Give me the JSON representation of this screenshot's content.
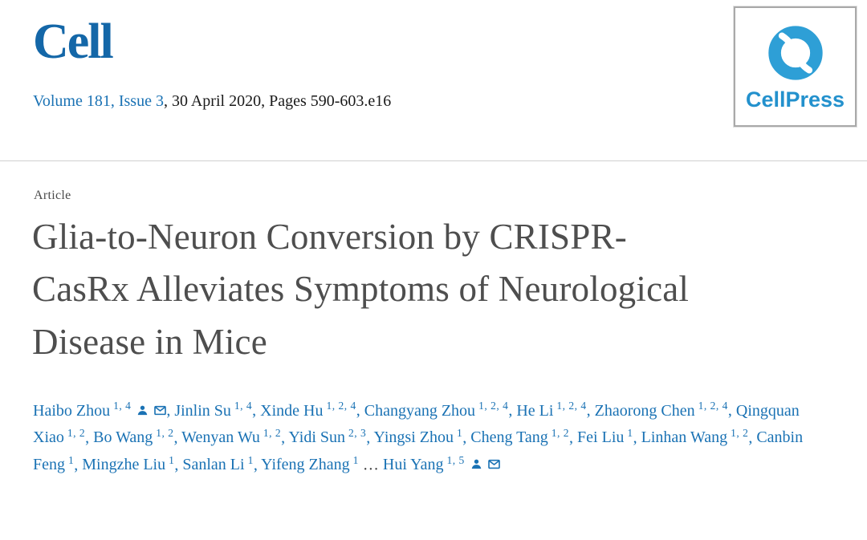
{
  "colors": {
    "logo_blue": "#1467a8",
    "link_blue": "#1a72b4",
    "icon_blue": "#2e9fd6",
    "wordmark_blue": "#2391cd",
    "title_gray": "#4e4e4e",
    "divider_gray": "#d0d0d0"
  },
  "header": {
    "journal_logo": "Cell",
    "volume_issue_link": "Volume 181, Issue 3",
    "date_pages_text": ", 30 April 2020, Pages 590-603.e16",
    "publisher_icon": "cellpress-icon",
    "publisher_wordmark": "CellPress"
  },
  "article": {
    "type_label": "Article",
    "title": "Glia-to-Neuron Conversion by CRISPR-CasRx Alleviates Symptoms of Neurological Disease in Mice",
    "title_lines": [
      "Glia-to-Neuron Conversion by CRISPR-",
      "CasRx Alleviates Symptoms of Neurological",
      "Disease in Mice"
    ]
  },
  "authors": {
    "separator": ", ",
    "ellipsis": " … ",
    "list": [
      {
        "name": "Haibo Zhou",
        "affiliations": "1, 4",
        "icons": [
          "person-icon",
          "envelope-icon"
        ]
      },
      {
        "name": "Jinlin Su",
        "affiliations": "1, 4"
      },
      {
        "name": "Xinde Hu",
        "affiliations": "1, 2, 4"
      },
      {
        "name": "Changyang Zhou",
        "affiliations": "1, 2, 4"
      },
      {
        "name": "He Li",
        "affiliations": "1, 2, 4"
      },
      {
        "name": "Zhaorong Chen",
        "affiliations": "1, 2, 4"
      },
      {
        "name": "Qingquan Xiao",
        "affiliations": "1, 2"
      },
      {
        "name": "Bo Wang",
        "affiliations": "1, 2"
      },
      {
        "name": "Wenyan Wu",
        "affiliations": "1, 2"
      },
      {
        "name": "Yidi Sun",
        "affiliations": "2, 3"
      },
      {
        "name": "Yingsi Zhou",
        "affiliations": "1"
      },
      {
        "name": "Cheng Tang",
        "affiliations": "1, 2"
      },
      {
        "name": "Fei Liu",
        "affiliations": "1"
      },
      {
        "name": "Linhan Wang",
        "affiliations": "1, 2"
      },
      {
        "name": "Canbin Feng",
        "affiliations": "1"
      },
      {
        "name": "Mingzhe Liu",
        "affiliations": "1"
      },
      {
        "name": "Sanlan Li",
        "affiliations": "1"
      },
      {
        "name": "Yifeng Zhang",
        "affiliations": "1",
        "ellipsis_after": true
      },
      {
        "name": "Hui Yang",
        "affiliations": "1, 5",
        "icons": [
          "person-icon",
          "envelope-icon"
        ]
      }
    ]
  }
}
